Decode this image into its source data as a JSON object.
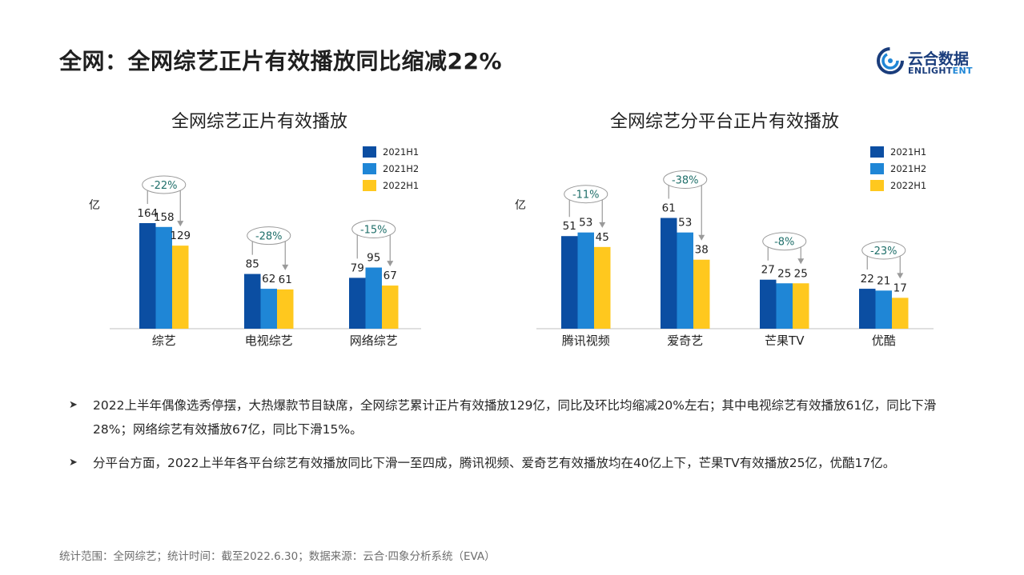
{
  "page": {
    "title": "全网：全网综艺正片有效播放同比缩减22%"
  },
  "logo": {
    "cn": "云合数据",
    "en_main": "ENLIGHT",
    "en_highlight": "ENT"
  },
  "chart_data": [
    {
      "type": "bar",
      "title": "全网综艺正片有效播放",
      "unit_label": "亿",
      "categories": [
        "综艺",
        "电视综艺",
        "网络综艺"
      ],
      "series": [
        {
          "name": "2021H1",
          "values": [
            164,
            85,
            79
          ]
        },
        {
          "name": "2021H2",
          "values": [
            158,
            62,
            95
          ]
        },
        {
          "name": "2022H1",
          "values": [
            129,
            61,
            67
          ]
        }
      ],
      "annotations": [
        "-22%",
        "-28%",
        "-15%"
      ],
      "ylim": [
        0,
        200
      ],
      "grid": false,
      "legend_position": "top-right"
    },
    {
      "type": "bar",
      "title": "全网综艺分平台正片有效播放",
      "unit_label": "亿",
      "categories": [
        "腾讯视频",
        "爱奇艺",
        "芒果TV",
        "优酷"
      ],
      "series": [
        {
          "name": "2021H1",
          "values": [
            51,
            61,
            27,
            22
          ]
        },
        {
          "name": "2021H2",
          "values": [
            53,
            53,
            25,
            21
          ]
        },
        {
          "name": "2022H1",
          "values": [
            45,
            38,
            25,
            17
          ]
        }
      ],
      "annotations": [
        "-11%",
        "-38%",
        "-8%",
        "-23%"
      ],
      "ylim": [
        0,
        75
      ],
      "grid": false,
      "legend_position": "top-right"
    }
  ],
  "colors": {
    "series": [
      "#0b4ea2",
      "#1f86d6",
      "#ffc81e"
    ],
    "annotation_text": "#1f6f6a",
    "axis": "#bfbfbf"
  },
  "bullets": [
    "2022上半年偶像选秀停摆，大热爆款节目缺席，全网综艺累计正片有效播放129亿，同比及环比均缩减20%左右；其中电视综艺有效播放61亿，同比下滑28%；网络综艺有效播放67亿，同比下滑15%。",
    "分平台方面，2022上半年各平台综艺有效播放同比下滑一至四成，腾讯视频、爱奇艺有效播放均在40亿上下，芒果TV有效播放25亿，优酷17亿。"
  ],
  "bullet_icon": "arrow-bullet-icon",
  "footer": "统计范围：全网综艺；统计时间：截至2022.6.30；数据来源：云合·四象分析系统（EVA）"
}
